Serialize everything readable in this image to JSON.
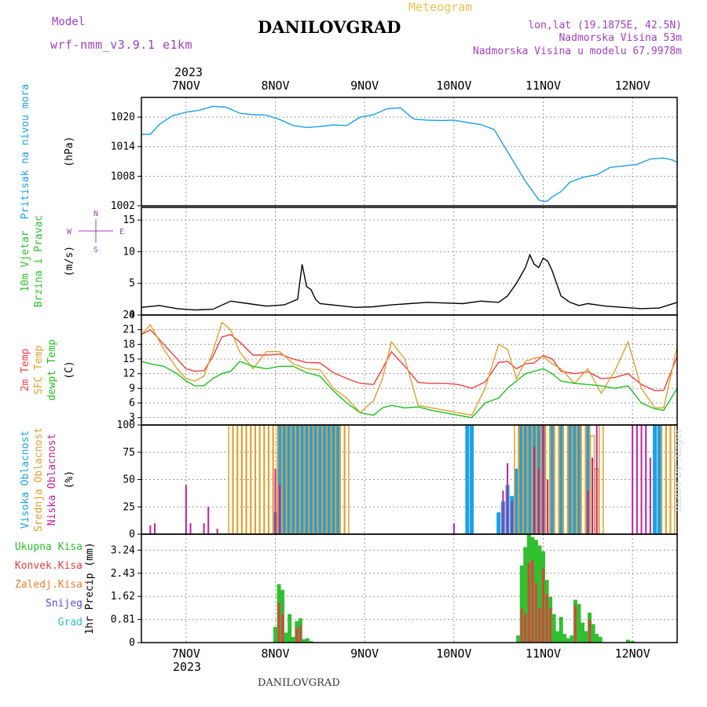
{
  "header": {
    "model_label": "Model",
    "model_name": "wrf-nmm_v3.9.1  e1km",
    "station": "DANILOVGRAD",
    "meteogram": "Meteogram",
    "lonlat": "lon,lat (19.1875E, 42.5N)",
    "elevation": "Nadmorska Visina 53m",
    "model_elevation": "Nadmorska Visina u modelu 67.9978m"
  },
  "footer": {
    "station": "DANILOVGRAD",
    "made_by": "made by Angel"
  },
  "colors": {
    "pressure": "#1ea0e8",
    "temp2m": "#f04040",
    "sfc_temp": "#e0a030",
    "dewpoint": "#20c020",
    "high_cloud": "#1ea0e8",
    "mid_cloud": "#e0a030",
    "low_cloud": "#c020a0",
    "total_precip": "#30c030",
    "conv_precip": "#e04040",
    "freezing_rain": "#f08030",
    "snow": "#5050e0",
    "hail": "#30c0c0",
    "wind_speed": "#000000"
  },
  "chart_data": [
    {
      "type": "line",
      "id": "pressure",
      "ylabel_lines": [
        "Pritisak na nivou mora",
        "(hPa)"
      ],
      "ylim": [
        1002,
        1024
      ],
      "yticks": [
        "1002",
        "1008",
        "1014",
        "1020"
      ],
      "grid": true,
      "top_axis": {
        "year": "2023",
        "days": [
          "7NOV",
          "8NOV",
          "9NOV",
          "10NOV",
          "11NOV",
          "12NOV"
        ]
      },
      "series": [
        {
          "name": "",
          "x": [
            6.5,
            6.6,
            6.7,
            6.85,
            7.0,
            7.15,
            7.3,
            7.45,
            7.6,
            7.75,
            7.9,
            8.05,
            8.2,
            8.35,
            8.5,
            8.65,
            8.8,
            8.95,
            9.1,
            9.25,
            9.4,
            9.55,
            9.7,
            9.85,
            10.0,
            10.15,
            10.3,
            10.45,
            10.6,
            10.7,
            10.8,
            10.9,
            10.95,
            11.0,
            11.05,
            11.1,
            11.2,
            11.3,
            11.45,
            11.6,
            11.75,
            11.9,
            12.05,
            12.2,
            12.35,
            12.45,
            12.5
          ],
          "y": [
            1016.5,
            1016.5,
            1018.5,
            1020.3,
            1021.0,
            1021.4,
            1022.2,
            1022.0,
            1020.8,
            1020.5,
            1020.4,
            1019.5,
            1018.3,
            1017.9,
            1018.1,
            1018.4,
            1018.3,
            1020.0,
            1020.5,
            1021.7,
            1021.9,
            1019.6,
            1019.4,
            1019.3,
            1019.4,
            1018.9,
            1018.5,
            1017.5,
            1013.0,
            1010.0,
            1007.0,
            1004.5,
            1003.2,
            1002.9,
            1003.0,
            1003.8,
            1004.9,
            1006.8,
            1007.8,
            1008.3,
            1009.8,
            1010.1,
            1010.4,
            1011.5,
            1011.7,
            1011.3,
            1010.8
          ]
        }
      ]
    },
    {
      "type": "line",
      "id": "wind",
      "ylabel_lines": [
        "10m Vjetar",
        "Brzina i Pravac",
        "(m/s)"
      ],
      "compass": {
        "n": "N",
        "s": "S",
        "w": "W",
        "e": "E"
      },
      "ylim": [
        0,
        17
      ],
      "yticks": [
        "0",
        "5",
        "10",
        "15"
      ],
      "grid": true,
      "series": [
        {
          "name": "",
          "x": [
            6.5,
            6.7,
            6.9,
            7.1,
            7.3,
            7.5,
            7.7,
            7.9,
            8.1,
            8.25,
            8.3,
            8.35,
            8.4,
            8.45,
            8.5,
            8.7,
            8.9,
            9.1,
            9.3,
            9.5,
            9.7,
            9.9,
            10.1,
            10.3,
            10.5,
            10.6,
            10.7,
            10.8,
            10.85,
            10.9,
            10.95,
            11.0,
            11.05,
            11.1,
            11.2,
            11.3,
            11.4,
            11.5,
            11.7,
            11.9,
            12.1,
            12.3,
            12.5
          ],
          "y": [
            1.2,
            1.5,
            1.0,
            0.8,
            0.9,
            2.2,
            1.8,
            1.4,
            1.6,
            2.5,
            8.0,
            4.5,
            4.0,
            2.5,
            1.8,
            1.5,
            1.2,
            1.3,
            1.6,
            1.8,
            2.0,
            1.9,
            1.8,
            2.2,
            2.0,
            3.0,
            5.0,
            7.5,
            9.5,
            8.0,
            7.5,
            9.0,
            8.5,
            7.0,
            3.0,
            2.0,
            1.5,
            1.8,
            1.4,
            1.2,
            1.0,
            1.1,
            2.0
          ]
        }
      ]
    },
    {
      "type": "line",
      "id": "temperature",
      "ylabel_lines": [
        "2m Temp",
        "SFC Temp",
        "dewpt Temp",
        "(C)"
      ],
      "ylim": [
        1.5,
        24
      ],
      "yticks": [
        "3",
        "6",
        "9",
        "12",
        "15",
        "18",
        "21",
        "24"
      ],
      "grid": true,
      "series": [
        {
          "name": "2m Temp",
          "x": [
            6.5,
            6.6,
            6.75,
            6.9,
            7.0,
            7.1,
            7.2,
            7.3,
            7.4,
            7.5,
            7.6,
            7.75,
            7.9,
            8.05,
            8.2,
            8.35,
            8.5,
            8.65,
            8.8,
            8.95,
            9.1,
            9.2,
            9.3,
            9.45,
            9.6,
            9.75,
            9.9,
            10.05,
            10.2,
            10.35,
            10.5,
            10.6,
            10.7,
            10.8,
            10.9,
            11.0,
            11.1,
            11.2,
            11.35,
            11.5,
            11.65,
            11.8,
            11.95,
            12.1,
            12.25,
            12.35,
            12.5
          ],
          "y": [
            20.0,
            21.0,
            18.0,
            15.0,
            13.0,
            12.5,
            12.6,
            15.5,
            19.5,
            20.0,
            18.5,
            15.8,
            15.8,
            16.0,
            15.0,
            14.3,
            14.2,
            12.2,
            11.0,
            10.0,
            9.8,
            13.0,
            16.5,
            13.5,
            10.2,
            10.0,
            10.0,
            9.8,
            9.0,
            10.3,
            14.3,
            14.5,
            13.0,
            14.0,
            14.2,
            15.7,
            15.0,
            12.5,
            12.0,
            12.4,
            11.0,
            11.2,
            12.0,
            9.8,
            8.5,
            8.6,
            15.5
          ]
        },
        {
          "name": "SFC Temp",
          "x": [
            6.5,
            6.6,
            6.75,
            6.9,
            7.0,
            7.1,
            7.2,
            7.3,
            7.4,
            7.5,
            7.6,
            7.75,
            7.9,
            8.05,
            8.2,
            8.35,
            8.5,
            8.65,
            8.8,
            8.95,
            9.1,
            9.2,
            9.3,
            9.45,
            9.6,
            9.75,
            9.9,
            10.05,
            10.2,
            10.35,
            10.5,
            10.6,
            10.7,
            10.8,
            10.9,
            11.0,
            11.1,
            11.2,
            11.35,
            11.5,
            11.65,
            11.8,
            11.95,
            12.1,
            12.25,
            12.35,
            12.5
          ],
          "y": [
            20.0,
            22.0,
            17.0,
            13.0,
            11.0,
            10.5,
            11.5,
            16.5,
            22.5,
            21.0,
            16.5,
            13.0,
            16.5,
            16.5,
            14.0,
            13.0,
            12.8,
            9.0,
            7.0,
            4.0,
            6.5,
            11.0,
            18.5,
            15.0,
            5.5,
            5.0,
            4.5,
            4.0,
            3.5,
            9.0,
            18.0,
            17.0,
            11.0,
            14.5,
            15.2,
            15.5,
            14.0,
            13.0,
            10.0,
            13.0,
            8.0,
            12.5,
            18.5,
            9.0,
            5.0,
            5.0,
            17.5
          ]
        },
        {
          "name": "dewpt Temp",
          "x": [
            6.5,
            6.6,
            6.75,
            6.9,
            7.0,
            7.1,
            7.2,
            7.3,
            7.4,
            7.5,
            7.6,
            7.75,
            7.9,
            8.05,
            8.2,
            8.35,
            8.5,
            8.65,
            8.8,
            8.95,
            9.1,
            9.2,
            9.3,
            9.45,
            9.6,
            9.75,
            9.9,
            10.05,
            10.2,
            10.35,
            10.5,
            10.6,
            10.7,
            10.8,
            10.9,
            11.0,
            11.1,
            11.2,
            11.35,
            11.5,
            11.65,
            11.8,
            11.95,
            12.1,
            12.25,
            12.35,
            12.5
          ],
          "y": [
            14.5,
            14.0,
            13.5,
            12.0,
            10.5,
            9.5,
            9.5,
            11.0,
            12.0,
            12.5,
            14.5,
            13.5,
            13.0,
            13.5,
            13.5,
            12.2,
            11.5,
            8.5,
            6.0,
            4.0,
            3.5,
            5.0,
            5.5,
            5.0,
            5.2,
            4.5,
            4.0,
            3.5,
            3.0,
            6.0,
            7.0,
            9.0,
            10.5,
            12.0,
            12.5,
            13.0,
            12.0,
            10.5,
            10.0,
            9.8,
            9.5,
            9.0,
            9.5,
            6.0,
            4.8,
            4.5,
            9.0
          ]
        }
      ]
    },
    {
      "type": "bar",
      "id": "clouds",
      "ylabel_lines": [
        "Visoka Oblacnost",
        "Srednja Oblacnost",
        "Niska  Oblacnost",
        "(%)"
      ],
      "ylim": [
        0,
        100
      ],
      "yticks": [
        "0",
        "25",
        "50",
        "75",
        "100"
      ],
      "grid": true,
      "series": [
        {
          "name": "Visoka Oblacnost",
          "x": [
            8.0,
            8.05,
            8.1,
            8.15,
            8.2,
            8.25,
            8.3,
            8.35,
            8.4,
            8.45,
            8.5,
            8.55,
            8.6,
            8.65,
            8.7,
            10.15,
            10.2,
            10.5,
            10.55,
            10.6,
            10.65,
            10.7,
            10.75,
            10.8,
            10.85,
            10.9,
            10.95,
            11.0,
            11.1,
            11.2,
            11.3,
            11.35,
            11.4,
            11.5,
            12.25,
            12.3
          ],
          "values": [
            20,
            100,
            100,
            100,
            100,
            100,
            100,
            100,
            100,
            100,
            100,
            100,
            100,
            100,
            100,
            100,
            100,
            20,
            30,
            45,
            35,
            60,
            100,
            100,
            100,
            100,
            100,
            100,
            100,
            100,
            100,
            100,
            100,
            100,
            100,
            100
          ]
        },
        {
          "name": "Srednja Oblacnost",
          "x": [
            7.5,
            7.55,
            7.6,
            7.65,
            7.7,
            7.75,
            7.8,
            7.85,
            7.9,
            7.95,
            8.0,
            8.05,
            8.1,
            8.15,
            8.2,
            8.25,
            8.3,
            8.35,
            8.4,
            8.45,
            8.5,
            8.55,
            8.6,
            8.65,
            8.7,
            8.75,
            8.8,
            10.7,
            10.75,
            10.8,
            10.85,
            10.9,
            10.95,
            11.0,
            11.05,
            11.1,
            11.15,
            11.2,
            11.25,
            11.3,
            11.35,
            11.4,
            11.45,
            11.5,
            11.55,
            11.6,
            11.65,
            12.35,
            12.4,
            12.45
          ],
          "values": [
            100,
            100,
            100,
            100,
            100,
            100,
            100,
            100,
            100,
            100,
            100,
            100,
            100,
            100,
            100,
            100,
            100,
            100,
            100,
            100,
            100,
            100,
            100,
            100,
            100,
            100,
            100,
            100,
            100,
            100,
            100,
            100,
            100,
            100,
            100,
            100,
            100,
            100,
            100,
            100,
            100,
            100,
            100,
            100,
            90,
            60,
            100,
            100,
            100,
            100
          ]
        },
        {
          "name": "Niska  Oblacnost",
          "x": [
            6.6,
            6.65,
            7.0,
            7.05,
            7.2,
            7.25,
            7.35,
            8.0,
            8.05,
            10.0,
            10.55,
            10.6,
            10.65,
            10.9,
            10.95,
            11.0,
            11.05,
            11.5,
            11.55,
            11.6,
            12.0,
            12.05,
            12.1,
            12.15,
            12.2
          ],
          "values": [
            8,
            10,
            45,
            10,
            10,
            25,
            5,
            60,
            45,
            10,
            40,
            65,
            30,
            80,
            60,
            100,
            50,
            40,
            70,
            100,
            100,
            100,
            100,
            100,
            70
          ]
        }
      ]
    },
    {
      "type": "bar",
      "id": "precip",
      "ylabel_lines": [
        "1hr Precip (mm)"
      ],
      "ylim": [
        0,
        3.8
      ],
      "yticks": [
        "0",
        "0.81",
        "1.62",
        "2.43",
        "3.24"
      ],
      "grid": true,
      "bottom_axis": {
        "year": "2023",
        "days": [
          "7NOV",
          "8NOV",
          "9NOV",
          "10NOV",
          "11NOV",
          "12NOV"
        ]
      },
      "legend": [
        "Ukupna Kisa",
        "Konvek.Kisa",
        "Zaledj.Kisa",
        "Snijeg",
        "Grad"
      ],
      "series": [
        {
          "name": "Ukupna Kisa",
          "x": [
            8.0,
            8.04,
            8.08,
            8.12,
            8.16,
            8.2,
            8.24,
            8.28,
            8.32,
            8.36,
            8.4,
            10.72,
            10.76,
            10.8,
            10.84,
            10.88,
            10.92,
            10.96,
            11.0,
            11.04,
            11.08,
            11.12,
            11.16,
            11.2,
            11.24,
            11.28,
            11.32,
            11.36,
            11.4,
            11.44,
            11.48,
            11.52,
            11.56,
            11.6,
            11.64,
            11.95,
            12.0
          ],
          "values": [
            0.55,
            2.05,
            1.85,
            0.35,
            1.0,
            0.2,
            0.75,
            0.85,
            0.12,
            0.15,
            0.05,
            0.25,
            2.7,
            3.35,
            3.85,
            3.7,
            3.6,
            3.4,
            3.2,
            2.2,
            1.6,
            1.0,
            0.4,
            0.9,
            0.3,
            0.15,
            0.25,
            1.5,
            1.35,
            0.7,
            0.4,
            1.05,
            0.65,
            0.3,
            0.2,
            0.1,
            0.06
          ]
        },
        {
          "name": "Konvek.Kisa",
          "x": [
            8.04,
            8.08,
            8.24,
            8.28,
            10.76,
            10.8,
            10.84,
            10.88,
            10.92,
            10.96,
            11.0,
            11.04,
            11.08,
            11.36,
            11.52
          ],
          "values": [
            1.4,
            1.0,
            0.5,
            0.6,
            1.2,
            1.0,
            2.8,
            2.9,
            2.1,
            1.2,
            2.6,
            1.7,
            1.2,
            1.3,
            0.8
          ]
        }
      ]
    }
  ]
}
